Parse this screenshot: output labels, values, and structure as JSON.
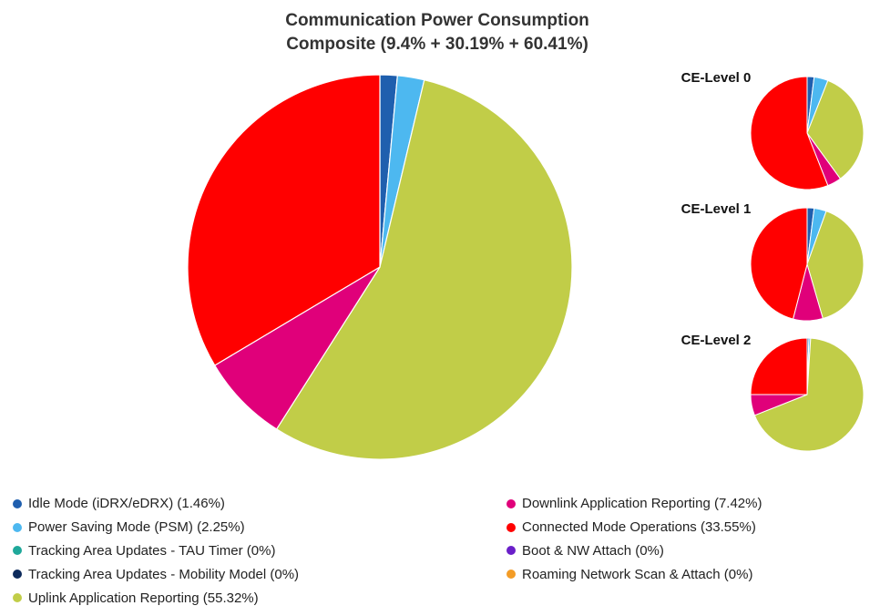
{
  "title": "Communication Power Consumption",
  "subtitle": "Composite (9.4% + 30.19% + 60.41%)",
  "chart_data": [
    {
      "type": "pie",
      "name": "Composite",
      "categories": [
        "Idle Mode (iDRX/eDRX)",
        "Power Saving Mode (PSM)",
        "Tracking Area Updates - TAU Timer",
        "Tracking Area Updates - Mobility Model",
        "Uplink Application Reporting",
        "Downlink Application Reporting",
        "Connected Mode Operations",
        "Boot & NW Attach",
        "Roaming Network Scan & Attach"
      ],
      "values": [
        1.46,
        2.25,
        0,
        0,
        55.32,
        7.42,
        33.55,
        0,
        0
      ],
      "colors": [
        "#1f5fae",
        "#4db8f0",
        "#1fa89a",
        "#0d2a5c",
        "#c1cd48",
        "#e0007a",
        "#ff0000",
        "#6a1fc9",
        "#f39c26"
      ],
      "legend": "bottom"
    },
    {
      "type": "pie",
      "title": "CE-Level 0",
      "categories": [
        "Idle Mode (iDRX/eDRX)",
        "Power Saving Mode (PSM)",
        "Uplink Application Reporting",
        "Downlink Application Reporting",
        "Connected Mode Operations"
      ],
      "values": [
        2.0,
        4.0,
        34.0,
        4.0,
        56.0
      ]
    },
    {
      "type": "pie",
      "title": "CE-Level 1",
      "categories": [
        "Idle Mode (iDRX/eDRX)",
        "Power Saving Mode (PSM)",
        "Uplink Application Reporting",
        "Downlink Application Reporting",
        "Connected Mode Operations"
      ],
      "values": [
        2.0,
        3.5,
        40.0,
        8.5,
        46.0
      ]
    },
    {
      "type": "pie",
      "title": "CE-Level 2",
      "categories": [
        "Idle Mode (iDRX/eDRX)",
        "Power Saving Mode (PSM)",
        "Uplink Application Reporting",
        "Downlink Application Reporting",
        "Connected Mode Operations"
      ],
      "values": [
        0.5,
        0.5,
        68.0,
        6.0,
        25.0
      ]
    }
  ],
  "legend_items": [
    {
      "label": "Idle Mode (iDRX/eDRX) (1.46%)",
      "color": "#1f5fae"
    },
    {
      "label": "Power Saving Mode (PSM) (2.25%)",
      "color": "#4db8f0"
    },
    {
      "label": "Tracking Area Updates - TAU Timer (0%)",
      "color": "#1fa89a"
    },
    {
      "label": "Tracking Area Updates - Mobility Model (0%)",
      "color": "#0d2a5c"
    },
    {
      "label": "Uplink Application Reporting (55.32%)",
      "color": "#c1cd48"
    },
    {
      "label": "Downlink Application Reporting (7.42%)",
      "color": "#e0007a"
    },
    {
      "label": "Connected Mode Operations (33.55%)",
      "color": "#ff0000"
    },
    {
      "label": "Boot & NW Attach (0%)",
      "color": "#6a1fc9"
    },
    {
      "label": "Roaming Network Scan & Attach (0%)",
      "color": "#f39c26"
    }
  ]
}
